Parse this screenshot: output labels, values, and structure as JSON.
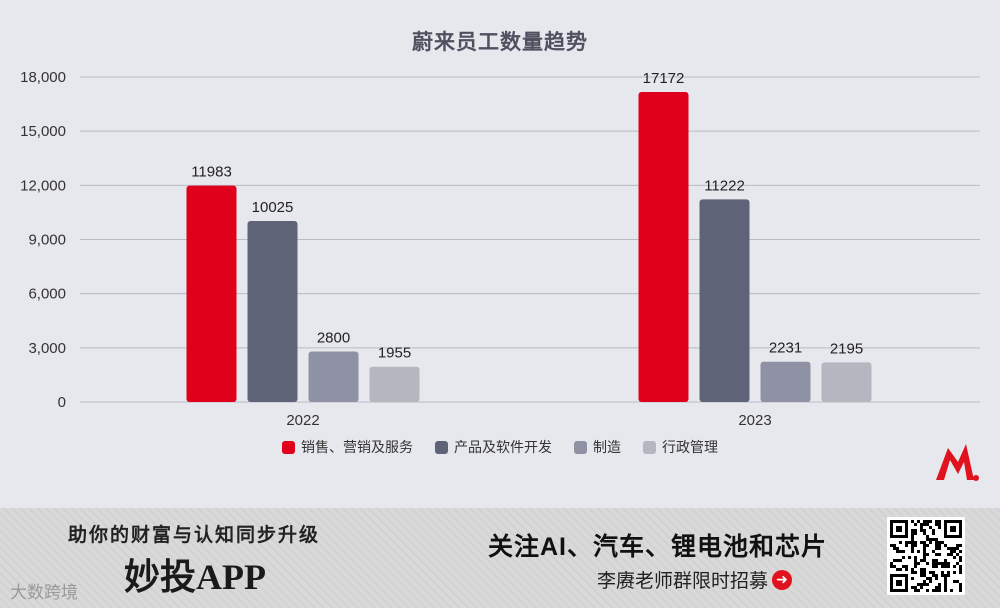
{
  "chart_data": {
    "type": "bar",
    "title": "蔚来员工数量趋势",
    "categories": [
      "2022",
      "2023"
    ],
    "series": [
      {
        "name": "销售、营销及服务",
        "color": "#e0001b",
        "values": [
          11983,
          17172
        ]
      },
      {
        "name": "产品及软件开发",
        "color": "#5f6378",
        "values": [
          10025,
          11222
        ]
      },
      {
        "name": "制造",
        "color": "#8e92a4",
        "values": [
          2800,
          2231
        ]
      },
      {
        "name": "行政管理",
        "color": "#b5b6c0",
        "values": [
          1955,
          2195
        ]
      }
    ],
    "ylim": [
      0,
      18000
    ],
    "yticks": [
      0,
      3000,
      6000,
      9000,
      12000,
      15000,
      18000
    ],
    "ytick_labels": [
      "0",
      "3,000",
      "6,000",
      "9,000",
      "12,000",
      "15,000",
      "18,000"
    ],
    "grid": true,
    "legend_position": "bottom"
  },
  "footer": {
    "slogan": "助你的财富与认知同步升级",
    "app_name": "妙投APP",
    "promo_main": "关注AI、汽车、锂电池和芯片",
    "promo_sub": "李赓老师群限时招募",
    "watermark": "大数跨境"
  },
  "icons": {
    "arrow": "arrow-right-circle-icon",
    "logo": "brand-logo",
    "qr": "qr-code"
  }
}
